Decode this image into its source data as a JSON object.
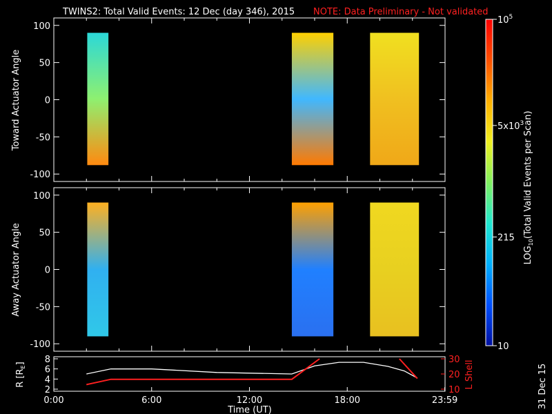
{
  "header": {
    "title": "TWINS2: Total Valid Events: 12 Dec (day 346), 2015",
    "note": "NOTE: Data Preliminary - Not validated",
    "note_color": "#ff2020"
  },
  "side_date": "31 Dec 15",
  "chart_data": [
    {
      "type": "heatmap",
      "panel": "toward",
      "ylabel": "Toward Actuator Angle",
      "ylim": [
        -110,
        110
      ],
      "yticks": [
        "100",
        "50",
        "0",
        "-50",
        "-100"
      ],
      "xlim_hours": [
        0,
        24
      ],
      "angle_range": [
        -88,
        90
      ],
      "blocks": [
        {
          "t_start": 2.05,
          "t_end": 3.35,
          "top_color": "#2bd8d8",
          "mid_color": "#8ef070",
          "bottom_color": "#ff8a10"
        },
        {
          "t_start": 14.6,
          "t_end": 17.15,
          "top_color": "#ffd000",
          "mid_color": "#40b8ff",
          "bottom_color": "#ff7a00"
        },
        {
          "t_start": 19.4,
          "t_end": 22.4,
          "top_color": "#f0e020",
          "mid_color": "#f0c020",
          "bottom_color": "#f0a818"
        }
      ]
    },
    {
      "type": "heatmap",
      "panel": "away",
      "ylabel": "Away Actuator Angle",
      "ylim": [
        -110,
        110
      ],
      "yticks": [
        "100",
        "50",
        "0",
        "-50",
        "-100"
      ],
      "xlim_hours": [
        0,
        24
      ],
      "angle_range": [
        -90,
        90
      ],
      "blocks": [
        {
          "t_start": 2.05,
          "t_end": 3.35,
          "top_color": "#ffb020",
          "mid_color": "#30b0f0",
          "bottom_color": "#30c8e8"
        },
        {
          "t_start": 14.6,
          "t_end": 17.15,
          "top_color": "#ffa000",
          "mid_color": "#2080ff",
          "bottom_color": "#2a70f0"
        },
        {
          "t_start": 19.4,
          "t_end": 22.4,
          "top_color": "#f0d820",
          "mid_color": "#e8d020",
          "bottom_color": "#e8c020"
        }
      ]
    },
    {
      "type": "line",
      "panel": "orbit",
      "ylabel_left": "R [R",
      "ylabel_left_sub": "E",
      "ylabel_left_end": "]",
      "ylabel_right": "L Shell",
      "ylim_left": [
        2,
        8
      ],
      "ylim_right": [
        10,
        30
      ],
      "yticks_left": [
        "8",
        "6",
        "4",
        "2"
      ],
      "yticks_right": [
        "30",
        "20",
        "10"
      ],
      "xlabel": "Time (UT)",
      "xticks": [
        "0:00",
        "6:00",
        "12:00",
        "18:00",
        "23:59"
      ],
      "series": [
        {
          "axis": "left",
          "color": "#ffffff",
          "x": [
            2.0,
            3.5,
            6.0,
            10.0,
            14.6,
            16.0,
            17.5,
            19.0,
            20.5,
            21.5,
            22.3
          ],
          "y": [
            5.0,
            6.0,
            6.0,
            5.3,
            5.0,
            6.6,
            7.3,
            7.3,
            6.5,
            5.6,
            4.2
          ]
        },
        {
          "axis": "right",
          "color": "#ff2020",
          "x": [
            2.0,
            3.5,
            14.6,
            16.3
          ],
          "y": [
            13,
            16.5,
            16.5,
            30
          ]
        },
        {
          "axis": "right",
          "color": "#ff2020",
          "x": [
            21.2,
            22.3
          ],
          "y": [
            30,
            17
          ]
        }
      ]
    }
  ],
  "colorbar": {
    "label_main": "LOG",
    "label_sub": "10",
    "label_rest": "(Total Valid Events per Scan)",
    "ticks": [
      {
        "value": 100000,
        "base": "10",
        "exp": "5"
      },
      {
        "value": 5000,
        "base": "5x10",
        "exp": "3"
      },
      {
        "value": 215,
        "base": "215",
        "exp": ""
      },
      {
        "value": 10,
        "base": "10",
        "exp": ""
      }
    ],
    "scale": "log",
    "range": [
      10,
      100000
    ],
    "stops": [
      "#0010a0",
      "#0050ff",
      "#00b0ff",
      "#20e8d0",
      "#80f060",
      "#f0f020",
      "#ffb000",
      "#ff5000",
      "#ff0000"
    ]
  }
}
